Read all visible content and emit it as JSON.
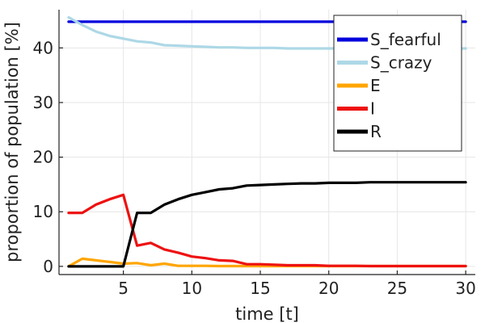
{
  "chart_data": {
    "type": "line",
    "title": "",
    "xlabel": "time [t]",
    "ylabel": "proportion of population [%]",
    "xlim": [
      0.3,
      30.7
    ],
    "ylim": [
      -1.5,
      47
    ],
    "xticks": [
      5,
      10,
      15,
      20,
      25,
      30
    ],
    "yticks": [
      0,
      10,
      20,
      30,
      40
    ],
    "grid": true,
    "legend_position": "top-right",
    "x": [
      1,
      2,
      3,
      4,
      5,
      6,
      7,
      8,
      9,
      10,
      11,
      12,
      13,
      14,
      15,
      16,
      17,
      18,
      19,
      20,
      21,
      22,
      23,
      24,
      25,
      26,
      27,
      28,
      29,
      30
    ],
    "series": [
      {
        "name": "S_fearful",
        "color": "#0000dd",
        "values": [
          44.8,
          44.8,
          44.8,
          44.8,
          44.8,
          44.8,
          44.8,
          44.8,
          44.8,
          44.8,
          44.8,
          44.8,
          44.8,
          44.8,
          44.8,
          44.8,
          44.8,
          44.8,
          44.8,
          44.8,
          44.8,
          44.8,
          44.8,
          44.8,
          44.8,
          44.8,
          44.8,
          44.8,
          44.8,
          44.8
        ]
      },
      {
        "name": "S_crazy",
        "color": "#add8e6",
        "values": [
          45.6,
          44.2,
          43.0,
          42.2,
          41.7,
          41.2,
          41.0,
          40.5,
          40.4,
          40.3,
          40.2,
          40.1,
          40.1,
          40.0,
          40.0,
          40.0,
          39.9,
          39.9,
          39.9,
          39.9,
          39.9,
          39.9,
          39.9,
          39.9,
          39.9,
          39.9,
          39.9,
          39.9,
          39.9,
          39.9
        ]
      },
      {
        "name": "E",
        "color": "#ffa500",
        "values": [
          0.0,
          1.4,
          1.1,
          0.8,
          0.5,
          0.6,
          0.2,
          0.5,
          0.1,
          0.1,
          0.1,
          0.05,
          0.05,
          0.05,
          0.05,
          0.05,
          0.05,
          0.05,
          0.05,
          0.05,
          0.05,
          0.05,
          0.05,
          0.05,
          0.05,
          0.05,
          0.05,
          0.05,
          0.05,
          0.05
        ]
      },
      {
        "name": "I",
        "color": "#ee1111",
        "values": [
          9.8,
          9.8,
          11.3,
          12.3,
          13.1,
          3.8,
          4.3,
          3.1,
          2.5,
          1.8,
          1.5,
          1.1,
          1.0,
          0.4,
          0.4,
          0.3,
          0.2,
          0.2,
          0.2,
          0.1,
          0.1,
          0.1,
          0.05,
          0.05,
          0.05,
          0.05,
          0.05,
          0.05,
          0.05,
          0.05
        ]
      },
      {
        "name": "R",
        "color": "#000000",
        "values": [
          0.0,
          0.0,
          0.0,
          0.0,
          0.0,
          9.8,
          9.8,
          11.3,
          12.3,
          13.1,
          13.6,
          14.1,
          14.3,
          14.8,
          14.9,
          15.0,
          15.1,
          15.2,
          15.2,
          15.3,
          15.3,
          15.3,
          15.4,
          15.4,
          15.4,
          15.4,
          15.4,
          15.4,
          15.4,
          15.4
        ]
      }
    ]
  }
}
